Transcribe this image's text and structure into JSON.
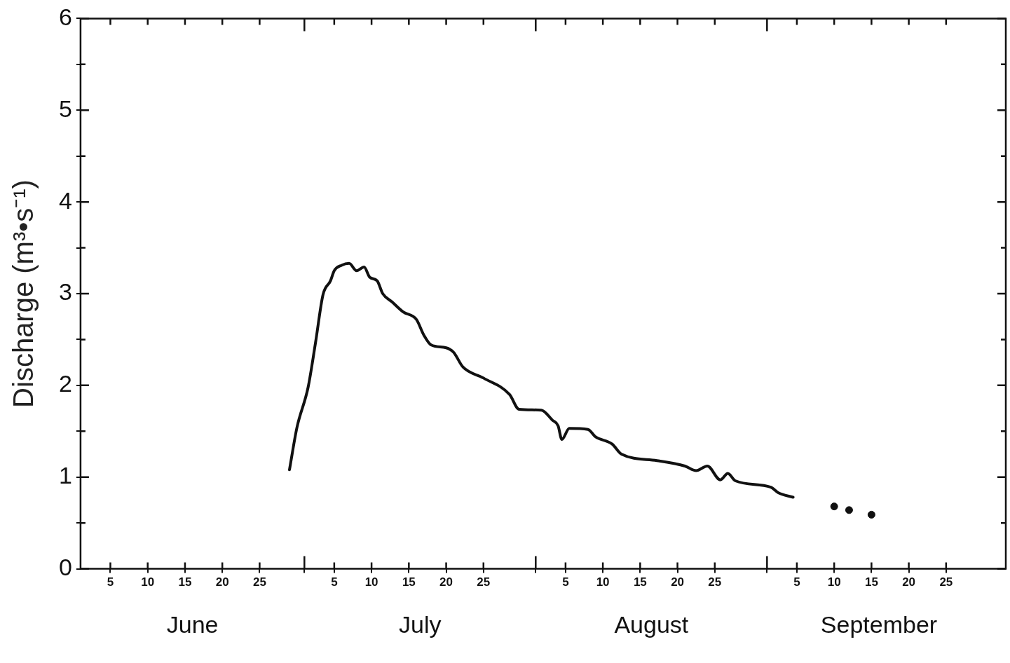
{
  "chart_data": {
    "type": "line",
    "ylabel": "Discharge (m³•s⁻¹)",
    "annotations": [
      "June",
      "July",
      "August",
      "September"
    ],
    "xlim": [
      "--06-01",
      "--10-03"
    ],
    "xticks": [
      {
        "value": "--06-05",
        "label": "5"
      },
      {
        "value": "--06-10",
        "label": "10"
      },
      {
        "value": "--06-15",
        "label": "15"
      },
      {
        "value": "--06-20",
        "label": "20"
      },
      {
        "value": "--06-25",
        "label": "25"
      },
      {
        "value": "--07-01",
        "label": null
      },
      {
        "value": "--07-05",
        "label": "5"
      },
      {
        "value": "--07-10",
        "label": "10"
      },
      {
        "value": "--07-15",
        "label": "15"
      },
      {
        "value": "--07-20",
        "label": "20"
      },
      {
        "value": "--07-25",
        "label": "25"
      },
      {
        "value": "--08-01",
        "label": null
      },
      {
        "value": "--08-05",
        "label": "5"
      },
      {
        "value": "--08-10",
        "label": "10"
      },
      {
        "value": "--08-15",
        "label": "15"
      },
      {
        "value": "--08-20",
        "label": "20"
      },
      {
        "value": "--08-25",
        "label": "25"
      },
      {
        "value": "--09-01",
        "label": null
      },
      {
        "value": "--09-05",
        "label": "5"
      },
      {
        "value": "--09-10",
        "label": "10"
      },
      {
        "value": "--09-15",
        "label": "15"
      },
      {
        "value": "--09-20",
        "label": "20"
      },
      {
        "value": "--09-25",
        "label": "25"
      }
    ],
    "ylim": [
      0,
      6
    ],
    "yticks": [
      0,
      {
        "value": 0.5,
        "label": null
      },
      1,
      {
        "value": 1.5,
        "label": null
      },
      2,
      {
        "value": 2.5,
        "label": null
      },
      3,
      {
        "value": 3.5,
        "label": null
      },
      4,
      {
        "value": 4.5,
        "label": null
      },
      5,
      {
        "value": 5.5,
        "label": null
      },
      6
    ],
    "series": [
      {
        "color": "#111111",
        "x": [
          "--06-29",
          "--06-30",
          "--07-01T12:00",
          "--07-02T12:00",
          "--07-03T12:00",
          "--07-04T12:00",
          "--07-05",
          "--07-06",
          "--07-07",
          "--07-08",
          "--07-09",
          "--07-09T18:00",
          "--07-10T18:00",
          "--07-11T12:00",
          "--07-12T18:00",
          "--07-14T06:00",
          "--07-16",
          "--07-17",
          "--07-18",
          "--07-20",
          "--07-21",
          "--07-22T06:00",
          "--07-25",
          "--07-28T12:00",
          "--07-29T18:00",
          "--08-01T18:00",
          "--08-03T06:00",
          "--08-04",
          "--08-04T12:00",
          "--08-05T12:00",
          "--08-08",
          "--08-09",
          "--08-11T06:00",
          "--08-12T12:00",
          "--08-17T06:00",
          "--08-21",
          "--08-22T12:00",
          "--08-24",
          "--08-25T18:00",
          "--08-26T18:00",
          "--08-27T18:00",
          "--09-01T12:00",
          "--09-02T12:00",
          "--09-04T12:00"
        ],
        "values": [
          1.08,
          1.54,
          1.98,
          2.47,
          2.99,
          3.14,
          3.25,
          3.31,
          3.33,
          3.25,
          3.29,
          3.18,
          3.14,
          3.0,
          2.91,
          2.8,
          2.72,
          2.55,
          2.44,
          2.41,
          2.36,
          2.2,
          2.08,
          1.9,
          1.74,
          1.73,
          1.62,
          1.56,
          1.41,
          1.53,
          1.52,
          1.44,
          1.36,
          1.25,
          1.18,
          1.12,
          1.07,
          1.12,
          0.97,
          1.04,
          0.96,
          0.89,
          0.83,
          0.78
        ]
      },
      {
        "type": "scatter",
        "color": "#111111",
        "marker": "circle",
        "x": [
          "--09-10",
          "--09-12",
          "--09-15"
        ],
        "values": [
          0.68,
          0.64,
          0.59
        ]
      }
    ]
  }
}
